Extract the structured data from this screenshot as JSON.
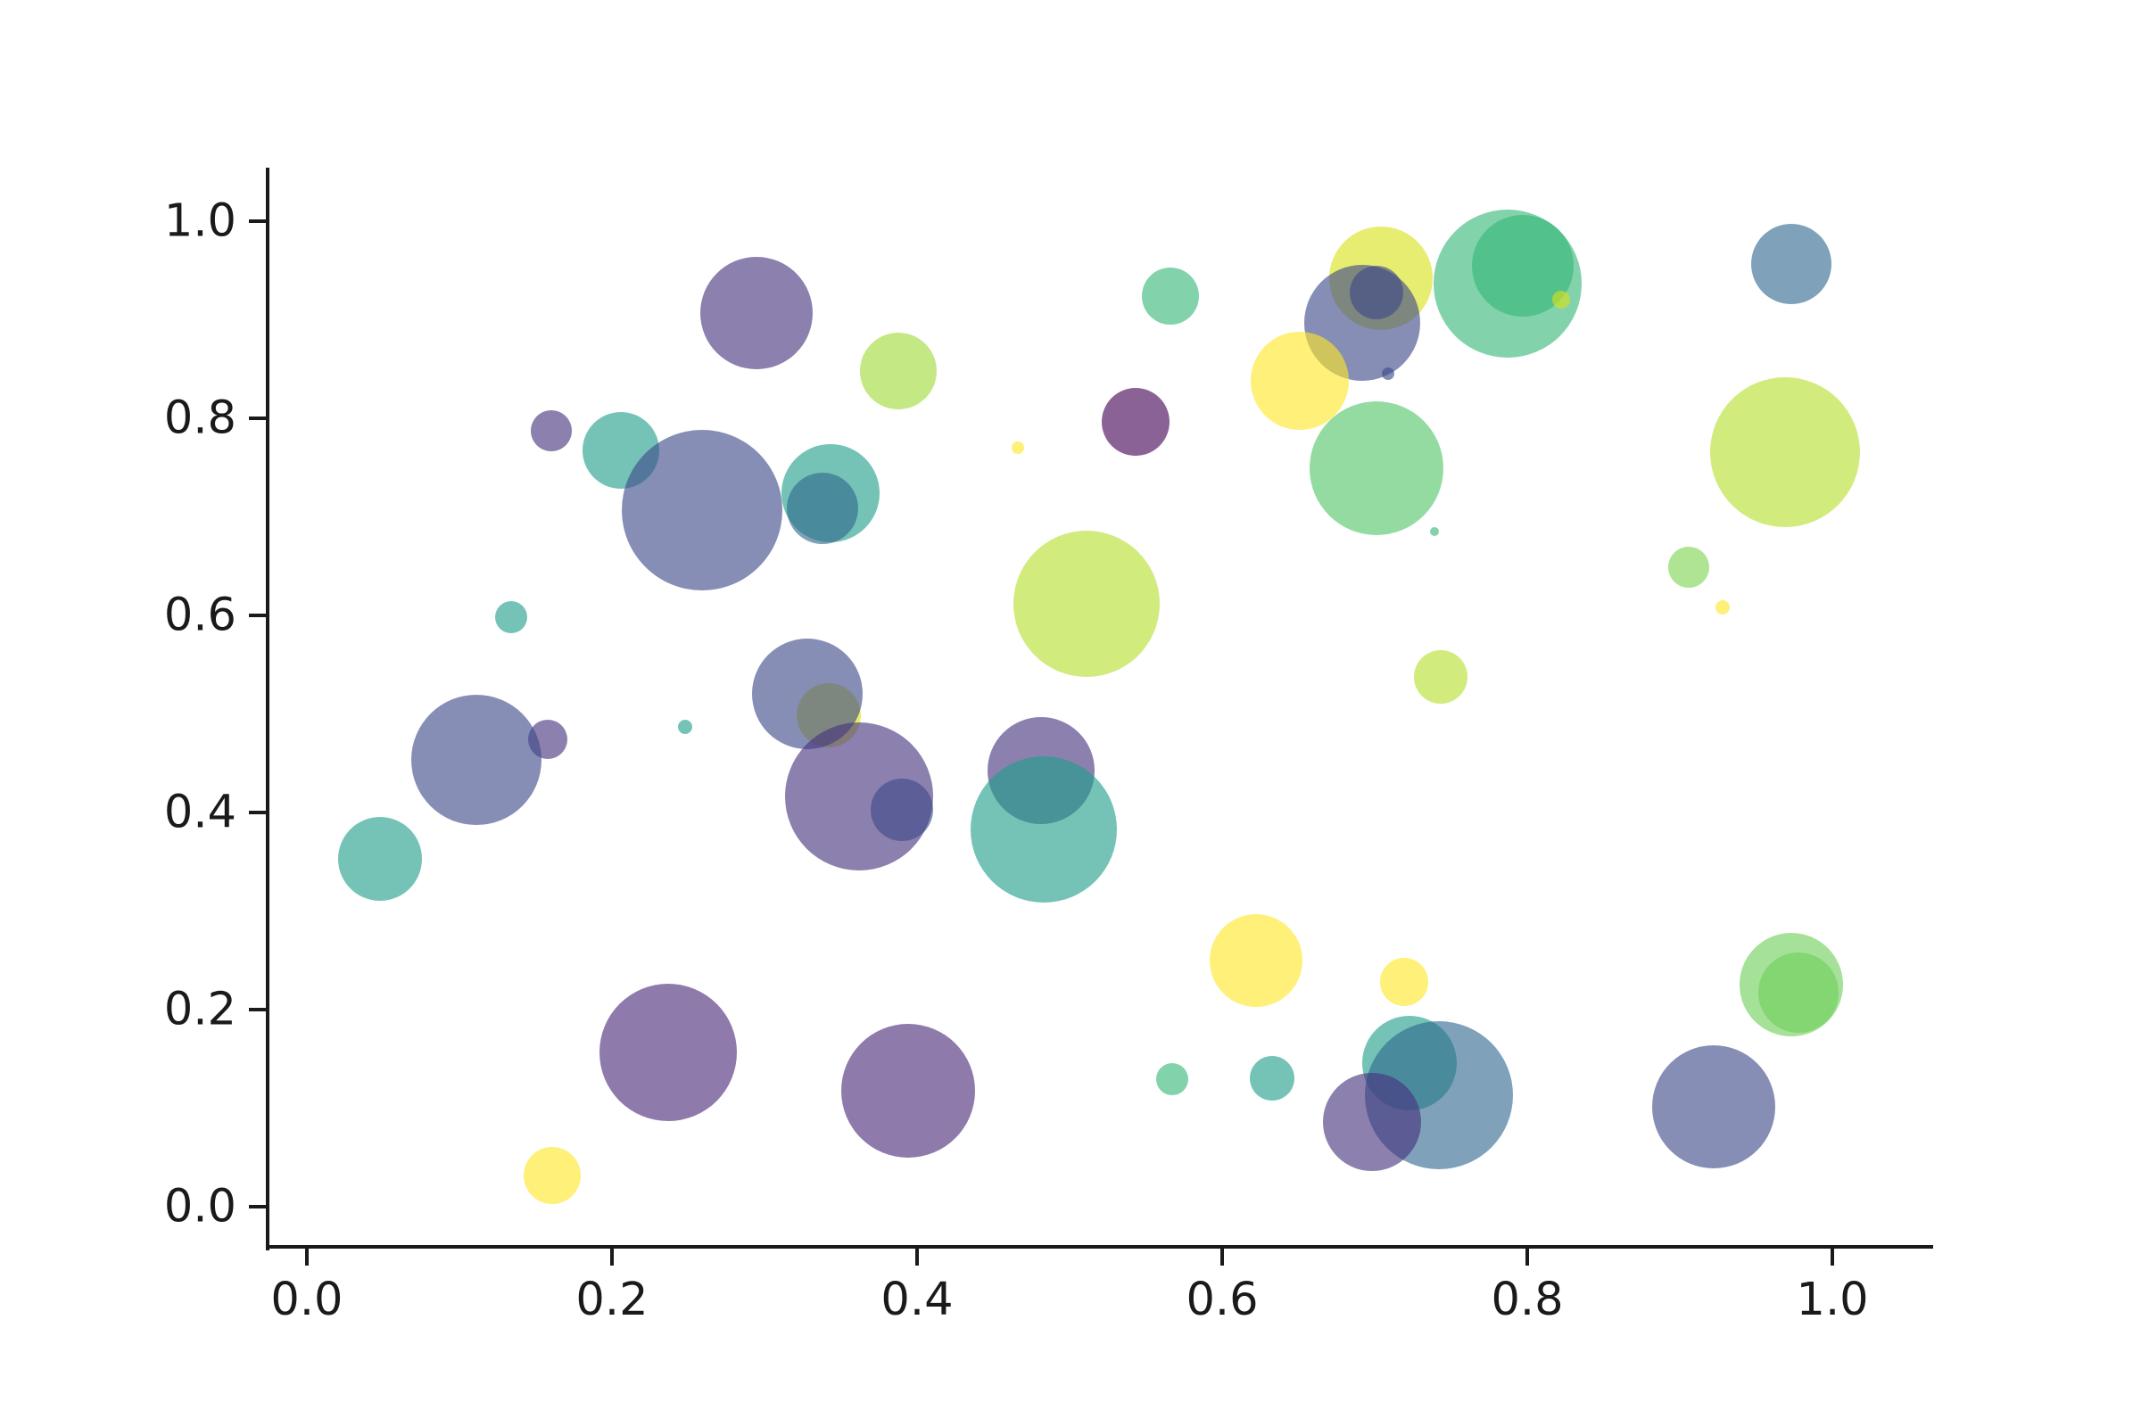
{
  "chart_data": {
    "type": "scatter",
    "title": "",
    "xlabel": "",
    "ylabel": "",
    "grid": false,
    "legend": null,
    "xlim": [
      -0.0257,
      1.0637
    ],
    "ylim": [
      -0.0407,
      1.0543
    ],
    "x_tick_values": [
      0.0,
      0.2,
      0.4,
      0.6,
      0.8,
      1.0
    ],
    "x_tick_labels": [
      "0.0",
      "0.2",
      "0.4",
      "0.6",
      "0.8",
      "1.0"
    ],
    "y_tick_values": [
      0.0,
      0.2,
      0.4,
      0.6,
      0.8,
      1.0
    ],
    "y_tick_labels": [
      "0.0",
      "0.2",
      "0.4",
      "0.6",
      "0.8",
      "1.0"
    ],
    "point_alpha": 0.62,
    "axis_color": "#1a1a1a",
    "points": [
      {
        "x": 0.295,
        "y": 0.907,
        "r": 63,
        "color": "#46327e"
      },
      {
        "x": 0.388,
        "y": 0.848,
        "r": 43,
        "color": "#a0da39"
      },
      {
        "x": 0.566,
        "y": 0.924,
        "r": 32,
        "color": "#35b779"
      },
      {
        "x": 0.704,
        "y": 0.942,
        "r": 58,
        "color": "#d8e219"
      },
      {
        "x": 0.692,
        "y": 0.897,
        "r": 65,
        "color": "#3e4989"
      },
      {
        "x": 0.701,
        "y": 0.928,
        "r": 30,
        "color": "#3e4989"
      },
      {
        "x": 0.709,
        "y": 0.845,
        "r": 7,
        "color": "#3e4989"
      },
      {
        "x": 0.787,
        "y": 0.937,
        "r": 83,
        "color": "#35b779"
      },
      {
        "x": 0.797,
        "y": 0.955,
        "r": 57,
        "color": "#35b779"
      },
      {
        "x": 0.822,
        "y": 0.92,
        "r": 10,
        "color": "#d8e219"
      },
      {
        "x": 0.973,
        "y": 0.957,
        "r": 45,
        "color": "#31688e"
      },
      {
        "x": 0.651,
        "y": 0.838,
        "r": 55,
        "color": "#fde725"
      },
      {
        "x": 0.543,
        "y": 0.796,
        "r": 38,
        "color": "#440154"
      },
      {
        "x": 0.16,
        "y": 0.787,
        "r": 23,
        "color": "#46327e"
      },
      {
        "x": 0.206,
        "y": 0.767,
        "r": 43,
        "color": "#1f9e89"
      },
      {
        "x": 0.259,
        "y": 0.707,
        "r": 90,
        "color": "#3e4989"
      },
      {
        "x": 0.343,
        "y": 0.724,
        "r": 55,
        "color": "#1f9e89"
      },
      {
        "x": 0.338,
        "y": 0.709,
        "r": 40,
        "color": "#31688e"
      },
      {
        "x": 0.701,
        "y": 0.749,
        "r": 75,
        "color": "#53c568"
      },
      {
        "x": 0.739,
        "y": 0.685,
        "r": 5,
        "color": "#35b779"
      },
      {
        "x": 0.969,
        "y": 0.766,
        "r": 84,
        "color": "#b5de2b"
      },
      {
        "x": 0.466,
        "y": 0.77,
        "r": 7,
        "color": "#fde725"
      },
      {
        "x": 0.511,
        "y": 0.612,
        "r": 82,
        "color": "#b5de2b"
      },
      {
        "x": 0.134,
        "y": 0.598,
        "r": 18,
        "color": "#1f9e89"
      },
      {
        "x": 0.906,
        "y": 0.649,
        "r": 23,
        "color": "#7dd34f"
      },
      {
        "x": 0.928,
        "y": 0.608,
        "r": 8,
        "color": "#fde725"
      },
      {
        "x": 0.743,
        "y": 0.538,
        "r": 30,
        "color": "#b5de2b"
      },
      {
        "x": 0.342,
        "y": 0.499,
        "r": 36,
        "color": "#d8e219"
      },
      {
        "x": 0.328,
        "y": 0.52,
        "r": 62,
        "color": "#3e4989"
      },
      {
        "x": 0.158,
        "y": 0.474,
        "r": 22,
        "color": "#46327e"
      },
      {
        "x": 0.248,
        "y": 0.487,
        "r": 8,
        "color": "#1f9e89"
      },
      {
        "x": 0.111,
        "y": 0.453,
        "r": 73,
        "color": "#3e4989"
      },
      {
        "x": 0.362,
        "y": 0.416,
        "r": 83,
        "color": "#46327e"
      },
      {
        "x": 0.39,
        "y": 0.403,
        "r": 35,
        "color": "#3e4989"
      },
      {
        "x": 0.481,
        "y": 0.443,
        "r": 60,
        "color": "#46327e"
      },
      {
        "x": 0.483,
        "y": 0.383,
        "r": 82,
        "color": "#1f9e89"
      },
      {
        "x": 0.048,
        "y": 0.353,
        "r": 47,
        "color": "#1f9e89"
      },
      {
        "x": 0.622,
        "y": 0.25,
        "r": 52,
        "color": "#fde725"
      },
      {
        "x": 0.719,
        "y": 0.228,
        "r": 27,
        "color": "#fde725"
      },
      {
        "x": 0.973,
        "y": 0.225,
        "r": 58,
        "color": "#6ece58"
      },
      {
        "x": 0.978,
        "y": 0.217,
        "r": 45,
        "color": "#6ece58"
      },
      {
        "x": 0.237,
        "y": 0.157,
        "r": 77,
        "color": "#482878"
      },
      {
        "x": 0.394,
        "y": 0.118,
        "r": 75,
        "color": "#482878"
      },
      {
        "x": 0.567,
        "y": 0.129,
        "r": 18,
        "color": "#35b779"
      },
      {
        "x": 0.633,
        "y": 0.13,
        "r": 25,
        "color": "#1f9e89"
      },
      {
        "x": 0.723,
        "y": 0.146,
        "r": 53,
        "color": "#1f9e89"
      },
      {
        "x": 0.742,
        "y": 0.113,
        "r": 83,
        "color": "#31688e"
      },
      {
        "x": 0.698,
        "y": 0.086,
        "r": 55,
        "color": "#46327e"
      },
      {
        "x": 0.922,
        "y": 0.101,
        "r": 69,
        "color": "#3e4989"
      },
      {
        "x": 0.161,
        "y": 0.032,
        "r": 32,
        "color": "#fde725"
      }
    ]
  }
}
